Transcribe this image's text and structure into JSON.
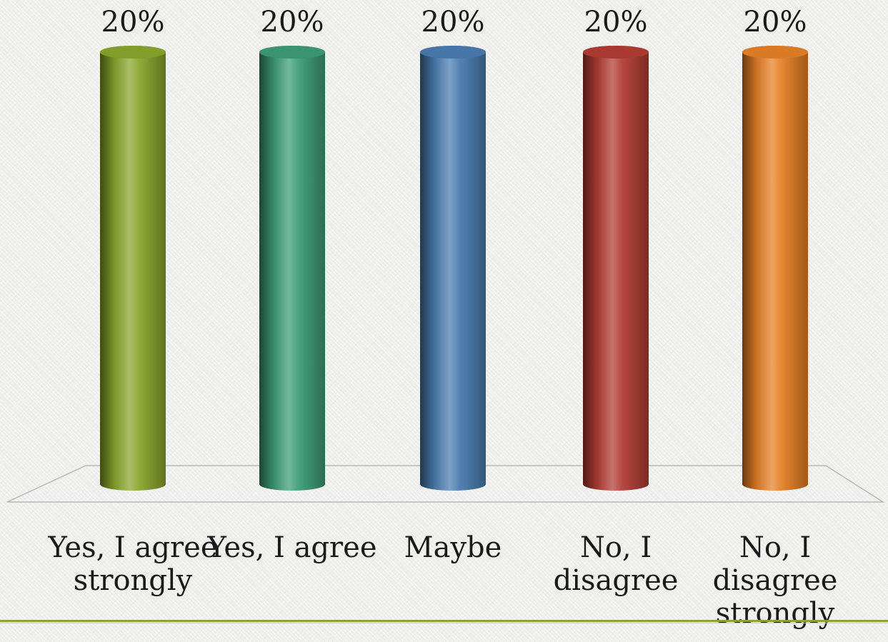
{
  "chart_data": {
    "type": "bar",
    "style": "3d-cylinder",
    "categories": [
      [
        "Yes, I agree",
        "strongly"
      ],
      [
        "Yes, I agree"
      ],
      [
        "Maybe"
      ],
      [
        "No, I",
        "disagree"
      ],
      [
        "No, I",
        "disagree",
        "strongly"
      ]
    ],
    "values": [
      20,
      20,
      20,
      20,
      20
    ],
    "data_labels": [
      "20%",
      "20%",
      "20%",
      "20%",
      "20%"
    ],
    "colors": [
      "#8aa52c",
      "#3d9c78",
      "#4a7cb0",
      "#b23d35",
      "#e58026"
    ],
    "ylim": [
      0,
      20
    ],
    "grid": false,
    "legend": "none"
  }
}
